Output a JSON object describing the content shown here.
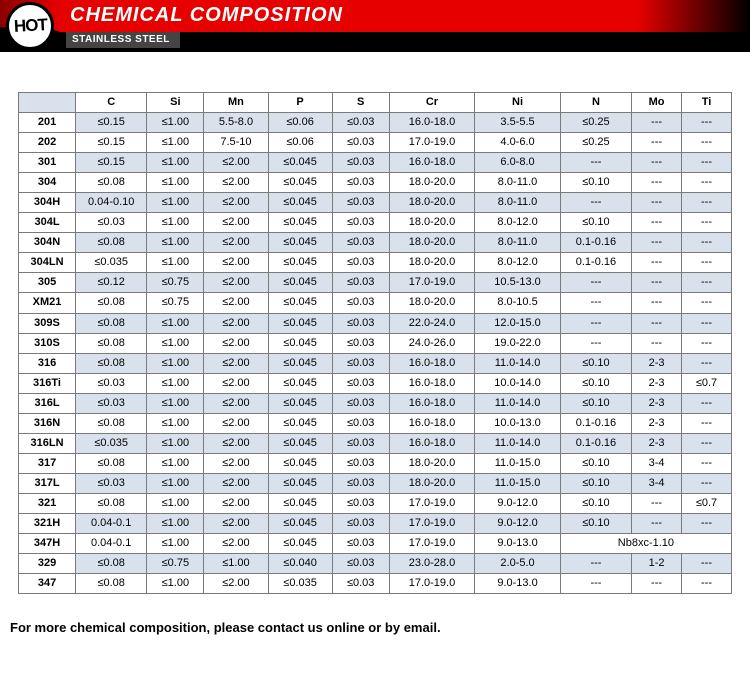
{
  "header": {
    "badge": "HOT",
    "title": "CHEMICAL COMPOSITION",
    "subtitle": "STAINLESS STEEL"
  },
  "table": {
    "columns": [
      "",
      "C",
      "Si",
      "Mn",
      "P",
      "S",
      "Cr",
      "Ni",
      "N",
      "Mo",
      "Ti"
    ],
    "rows": [
      [
        "201",
        "≤0.15",
        "≤1.00",
        "5.5-8.0",
        "≤0.06",
        "≤0.03",
        "16.0-18.0",
        "3.5-5.5",
        "≤0.25",
        "---",
        "---"
      ],
      [
        "202",
        "≤0.15",
        "≤1.00",
        "7.5-10",
        "≤0.06",
        "≤0.03",
        "17.0-19.0",
        "4.0-6.0",
        "≤0.25",
        "---",
        "---"
      ],
      [
        "301",
        "≤0.15",
        "≤1.00",
        "≤2.00",
        "≤0.045",
        "≤0.03",
        "16.0-18.0",
        "6.0-8.0",
        "---",
        "---",
        "---"
      ],
      [
        "304",
        "≤0.08",
        "≤1.00",
        "≤2.00",
        "≤0.045",
        "≤0.03",
        "18.0-20.0",
        "8.0-11.0",
        "≤0.10",
        "---",
        "---"
      ],
      [
        "304H",
        "0.04-0.10",
        "≤1.00",
        "≤2.00",
        "≤0.045",
        "≤0.03",
        "18.0-20.0",
        "8.0-11.0",
        "---",
        "---",
        "---"
      ],
      [
        "304L",
        "≤0.03",
        "≤1.00",
        "≤2.00",
        "≤0.045",
        "≤0.03",
        "18.0-20.0",
        "8.0-12.0",
        "≤0.10",
        "---",
        "---"
      ],
      [
        "304N",
        "≤0.08",
        "≤1.00",
        "≤2.00",
        "≤0.045",
        "≤0.03",
        "18.0-20.0",
        "8.0-11.0",
        "0.1-0.16",
        "---",
        "---"
      ],
      [
        "304LN",
        "≤0.035",
        "≤1.00",
        "≤2.00",
        "≤0.045",
        "≤0.03",
        "18.0-20.0",
        "8.0-12.0",
        "0.1-0.16",
        "---",
        "---"
      ],
      [
        "305",
        "≤0.12",
        "≤0.75",
        "≤2.00",
        "≤0.045",
        "≤0.03",
        "17.0-19.0",
        "10.5-13.0",
        "---",
        "---",
        "---"
      ],
      [
        "XM21",
        "≤0.08",
        "≤0.75",
        "≤2.00",
        "≤0.045",
        "≤0.03",
        "18.0-20.0",
        "8.0-10.5",
        "---",
        "---",
        "---"
      ],
      [
        "309S",
        "≤0.08",
        "≤1.00",
        "≤2.00",
        "≤0.045",
        "≤0.03",
        "22.0-24.0",
        "12.0-15.0",
        "---",
        "---",
        "---"
      ],
      [
        "310S",
        "≤0.08",
        "≤1.00",
        "≤2.00",
        "≤0.045",
        "≤0.03",
        "24.0-26.0",
        "19.0-22.0",
        "---",
        "---",
        "---"
      ],
      [
        "316",
        "≤0.08",
        "≤1.00",
        "≤2.00",
        "≤0.045",
        "≤0.03",
        "16.0-18.0",
        "11.0-14.0",
        "≤0.10",
        "2-3",
        "---"
      ],
      [
        "316Ti",
        "≤0.03",
        "≤1.00",
        "≤2.00",
        "≤0.045",
        "≤0.03",
        "16.0-18.0",
        "10.0-14.0",
        "≤0.10",
        "2-3",
        "≤0.7"
      ],
      [
        "316L",
        "≤0.03",
        "≤1.00",
        "≤2.00",
        "≤0.045",
        "≤0.03",
        "16.0-18.0",
        "11.0-14.0",
        "≤0.10",
        "2-3",
        "---"
      ],
      [
        "316N",
        "≤0.08",
        "≤1.00",
        "≤2.00",
        "≤0.045",
        "≤0.03",
        "16.0-18.0",
        "10.0-13.0",
        "0.1-0.16",
        "2-3",
        "---"
      ],
      [
        "316LN",
        "≤0.035",
        "≤1.00",
        "≤2.00",
        "≤0.045",
        "≤0.03",
        "16.0-18.0",
        "11.0-14.0",
        "0.1-0.16",
        "2-3",
        "---"
      ],
      [
        "317",
        "≤0.08",
        "≤1.00",
        "≤2.00",
        "≤0.045",
        "≤0.03",
        "18.0-20.0",
        "11.0-15.0",
        "≤0.10",
        "3-4",
        "---"
      ],
      [
        "317L",
        "≤0.03",
        "≤1.00",
        "≤2.00",
        "≤0.045",
        "≤0.03",
        "18.0-20.0",
        "11.0-15.0",
        "≤0.10",
        "3-4",
        "---"
      ],
      [
        "321",
        "≤0.08",
        "≤1.00",
        "≤2.00",
        "≤0.045",
        "≤0.03",
        "17.0-19.0",
        "9.0-12.0",
        "≤0.10",
        "---",
        "≤0.7"
      ],
      [
        "321H",
        "0.04-0.1",
        "≤1.00",
        "≤2.00",
        "≤0.045",
        "≤0.03",
        "17.0-19.0",
        "9.0-12.0",
        "≤0.10",
        "---",
        "---"
      ],
      [
        "347H",
        "0.04-0.1",
        "≤1.00",
        "≤2.00",
        "≤0.045",
        "≤0.03",
        "17.0-19.0",
        "9.0-13.0",
        {
          "span": 3,
          "text": "Nb8xc-1.10"
        }
      ],
      [
        "329",
        "≤0.08",
        "≤0.75",
        "≤1.00",
        "≤0.040",
        "≤0.03",
        "23.0-28.0",
        "2.0-5.0",
        "---",
        "1-2",
        "---"
      ],
      [
        "347",
        "≤0.08",
        "≤1.00",
        "≤2.00",
        "≤0.035",
        "≤0.03",
        "17.0-19.0",
        "9.0-13.0",
        "---",
        "---",
        "---"
      ]
    ],
    "col_widths": [
      "8%",
      "10%",
      "8%",
      "9%",
      "9%",
      "8%",
      "12%",
      "12%",
      "10%",
      "7%",
      "7%"
    ]
  },
  "footnote": "For more chemical composition, please contact us online or by email.",
  "colors": {
    "header_black": "#000000",
    "header_red": "#e60000",
    "row_alt": "#d9e1ec",
    "border": "#7a7a7a"
  }
}
